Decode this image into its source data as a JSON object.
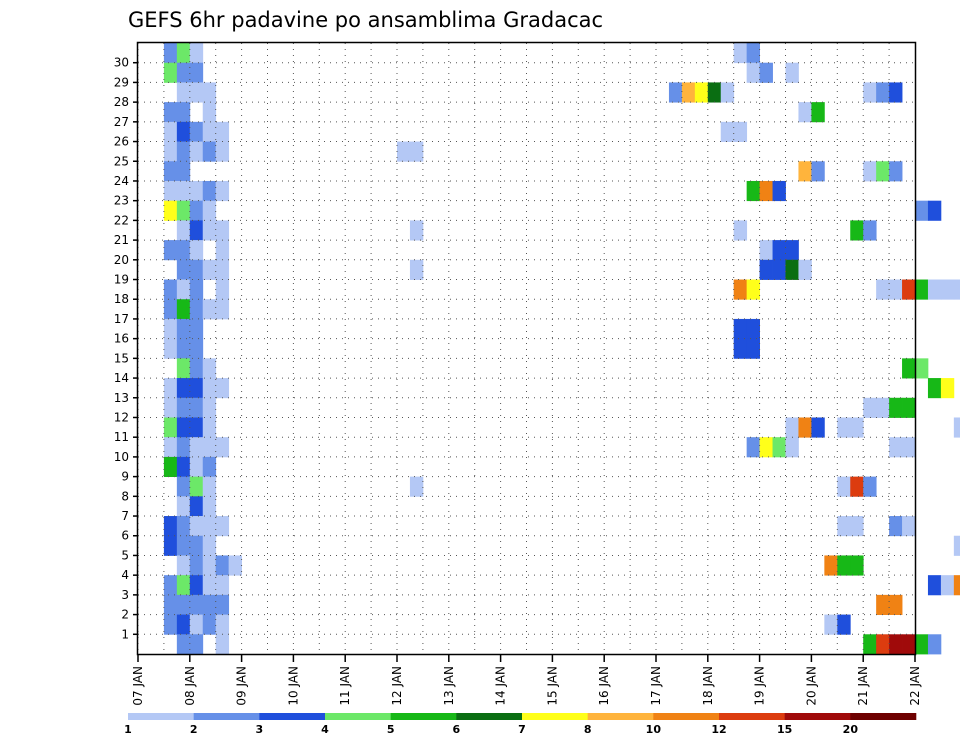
{
  "chart_data": {
    "type": "heatmap",
    "title": "GEFS 6hr padavine po ansamblima Gradacac",
    "xlabel": "",
    "ylabel": "",
    "x_tick_labels": [
      "07 JAN",
      "08 JAN",
      "09 JAN",
      "10 JAN",
      "11 JAN",
      "12 JAN",
      "13 JAN",
      "14 JAN",
      "15 JAN",
      "16 JAN",
      "17 JAN",
      "18 JAN",
      "19 JAN",
      "20 JAN",
      "21 JAN",
      "22 JAN"
    ],
    "y_tick_labels": [
      "1",
      "2",
      "3",
      "4",
      "5",
      "6",
      "7",
      "8",
      "9",
      "10",
      "11",
      "12",
      "13",
      "14",
      "15",
      "16",
      "17",
      "18",
      "19",
      "20",
      "21",
      "22",
      "23",
      "24",
      "25",
      "26",
      "27",
      "28",
      "29",
      "30"
    ],
    "grid": true,
    "legend_placement": "bottom",
    "colorbar": {
      "labels": [
        "1",
        "2",
        "3",
        "4",
        "5",
        "6",
        "7",
        "8",
        "10",
        "12",
        "15",
        "20"
      ],
      "colors": [
        "#b4c8f5",
        "#6690e8",
        "#1f4fdc",
        "#6ce868",
        "#17b817",
        "#0a6e12",
        "#ffff1a",
        "#ffb43c",
        "#f08214",
        "#dc3c0f",
        "#a00a0a",
        "#6e0000"
      ]
    },
    "cells": [
      [
        30,
        2,
        2
      ],
      [
        30,
        3,
        4
      ],
      [
        30,
        4,
        1
      ],
      [
        30,
        46,
        1
      ],
      [
        30,
        47,
        2
      ],
      [
        29,
        2,
        4
      ],
      [
        29,
        3,
        2
      ],
      [
        29,
        4,
        2
      ],
      [
        29,
        47,
        1
      ],
      [
        29,
        48,
        2
      ],
      [
        29,
        50,
        1
      ],
      [
        28,
        3,
        1
      ],
      [
        28,
        4,
        1
      ],
      [
        28,
        5,
        1
      ],
      [
        28,
        41,
        2
      ],
      [
        28,
        42,
        8
      ],
      [
        28,
        43,
        7
      ],
      [
        28,
        44,
        6
      ],
      [
        28,
        45,
        1
      ],
      [
        28,
        56,
        1
      ],
      [
        28,
        57,
        2
      ],
      [
        28,
        58,
        3
      ],
      [
        27,
        2,
        2
      ],
      [
        27,
        3,
        2
      ],
      [
        27,
        5,
        1
      ],
      [
        27,
        51,
        1
      ],
      [
        27,
        52,
        5
      ],
      [
        26,
        2,
        1
      ],
      [
        26,
        3,
        3
      ],
      [
        26,
        4,
        2
      ],
      [
        26,
        5,
        1
      ],
      [
        26,
        6,
        1
      ],
      [
        26,
        45,
        1
      ],
      [
        26,
        46,
        1
      ],
      [
        25,
        2,
        1
      ],
      [
        25,
        3,
        2
      ],
      [
        25,
        4,
        1
      ],
      [
        25,
        5,
        2
      ],
      [
        25,
        6,
        1
      ],
      [
        25,
        20,
        1
      ],
      [
        25,
        21,
        1
      ],
      [
        24,
        2,
        2
      ],
      [
        24,
        3,
        2
      ],
      [
        24,
        51,
        8
      ],
      [
        24,
        52,
        2
      ],
      [
        24,
        56,
        1
      ],
      [
        24,
        57,
        4
      ],
      [
        24,
        58,
        2
      ],
      [
        23,
        2,
        1
      ],
      [
        23,
        3,
        1
      ],
      [
        23,
        4,
        1
      ],
      [
        23,
        5,
        2
      ],
      [
        23,
        6,
        1
      ],
      [
        23,
        47,
        5
      ],
      [
        23,
        48,
        9
      ],
      [
        23,
        49,
        3
      ],
      [
        23,
        68,
        1
      ],
      [
        23,
        70,
        3
      ],
      [
        23,
        71,
        7
      ],
      [
        22,
        2,
        7
      ],
      [
        22,
        3,
        4
      ],
      [
        22,
        4,
        2
      ],
      [
        22,
        5,
        1
      ],
      [
        22,
        60,
        2
      ],
      [
        22,
        61,
        3
      ],
      [
        21,
        3,
        1
      ],
      [
        21,
        4,
        3
      ],
      [
        21,
        5,
        1
      ],
      [
        21,
        6,
        1
      ],
      [
        21,
        21,
        1
      ],
      [
        21,
        46,
        1
      ],
      [
        21,
        55,
        5
      ],
      [
        21,
        56,
        2
      ],
      [
        20,
        2,
        2
      ],
      [
        20,
        3,
        2
      ],
      [
        20,
        4,
        1
      ],
      [
        20,
        6,
        1
      ],
      [
        20,
        48,
        1
      ],
      [
        20,
        49,
        3
      ],
      [
        20,
        50,
        3
      ],
      [
        20,
        71,
        2
      ],
      [
        20,
        72,
        6
      ],
      [
        19,
        3,
        2
      ],
      [
        19,
        4,
        2
      ],
      [
        19,
        5,
        1
      ],
      [
        19,
        6,
        1
      ],
      [
        19,
        21,
        1
      ],
      [
        19,
        48,
        3
      ],
      [
        19,
        49,
        3
      ],
      [
        19,
        50,
        6
      ],
      [
        19,
        51,
        1
      ],
      [
        18,
        2,
        2
      ],
      [
        18,
        3,
        1
      ],
      [
        18,
        4,
        2
      ],
      [
        18,
        6,
        1
      ],
      [
        18,
        46,
        9
      ],
      [
        18,
        47,
        7
      ],
      [
        18,
        57,
        1
      ],
      [
        18,
        58,
        1
      ],
      [
        18,
        59,
        10
      ],
      [
        18,
        60,
        5
      ],
      [
        18,
        61,
        1
      ],
      [
        18,
        62,
        1
      ],
      [
        18,
        63,
        1
      ],
      [
        18,
        64,
        1
      ],
      [
        18,
        69,
        1
      ],
      [
        18,
        70,
        2
      ],
      [
        18,
        71,
        1
      ],
      [
        17,
        2,
        2
      ],
      [
        17,
        3,
        5
      ],
      [
        17,
        4,
        2
      ],
      [
        17,
        5,
        1
      ],
      [
        17,
        6,
        1
      ],
      [
        16,
        2,
        1
      ],
      [
        16,
        3,
        2
      ],
      [
        16,
        4,
        2
      ],
      [
        16,
        46,
        3
      ],
      [
        16,
        47,
        3
      ],
      [
        15,
        2,
        1
      ],
      [
        15,
        3,
        2
      ],
      [
        15,
        4,
        2
      ],
      [
        15,
        46,
        3
      ],
      [
        15,
        47,
        3
      ],
      [
        14,
        3,
        4
      ],
      [
        14,
        4,
        2
      ],
      [
        14,
        5,
        1
      ],
      [
        14,
        59,
        5
      ],
      [
        14,
        60,
        4
      ],
      [
        13,
        2,
        1
      ],
      [
        13,
        3,
        3
      ],
      [
        13,
        4,
        3
      ],
      [
        13,
        5,
        1
      ],
      [
        13,
        6,
        1
      ],
      [
        13,
        61,
        5
      ],
      [
        13,
        62,
        7
      ],
      [
        13,
        70,
        1
      ],
      [
        12,
        2,
        1
      ],
      [
        12,
        3,
        2
      ],
      [
        12,
        4,
        2
      ],
      [
        12,
        5,
        1
      ],
      [
        12,
        56,
        1
      ],
      [
        12,
        57,
        1
      ],
      [
        12,
        58,
        5
      ],
      [
        12,
        59,
        5
      ],
      [
        11,
        2,
        4
      ],
      [
        11,
        3,
        3
      ],
      [
        11,
        4,
        3
      ],
      [
        11,
        5,
        1
      ],
      [
        11,
        50,
        1
      ],
      [
        11,
        51,
        9
      ],
      [
        11,
        52,
        3
      ],
      [
        11,
        54,
        1
      ],
      [
        11,
        55,
        1
      ],
      [
        11,
        63,
        1
      ],
      [
        11,
        64,
        2
      ],
      [
        11,
        65,
        2
      ],
      [
        10,
        2,
        1
      ],
      [
        10,
        3,
        2
      ],
      [
        10,
        4,
        1
      ],
      [
        10,
        5,
        1
      ],
      [
        10,
        6,
        1
      ],
      [
        10,
        47,
        2
      ],
      [
        10,
        48,
        7
      ],
      [
        10,
        49,
        4
      ],
      [
        10,
        50,
        1
      ],
      [
        10,
        58,
        1
      ],
      [
        10,
        59,
        1
      ],
      [
        9,
        2,
        5
      ],
      [
        9,
        3,
        3
      ],
      [
        9,
        4,
        1
      ],
      [
        9,
        5,
        2
      ],
      [
        8,
        3,
        2
      ],
      [
        8,
        4,
        4
      ],
      [
        8,
        5,
        1
      ],
      [
        8,
        21,
        1
      ],
      [
        8,
        54,
        1
      ],
      [
        8,
        55,
        10
      ],
      [
        8,
        56,
        2
      ],
      [
        8,
        70,
        1
      ],
      [
        7,
        3,
        1
      ],
      [
        7,
        4,
        3
      ],
      [
        7,
        5,
        1
      ],
      [
        6,
        2,
        3
      ],
      [
        6,
        3,
        2
      ],
      [
        6,
        4,
        1
      ],
      [
        6,
        5,
        1
      ],
      [
        6,
        6,
        1
      ],
      [
        6,
        54,
        1
      ],
      [
        6,
        55,
        1
      ],
      [
        6,
        58,
        2
      ],
      [
        6,
        59,
        1
      ],
      [
        5,
        2,
        3
      ],
      [
        5,
        3,
        2
      ],
      [
        5,
        4,
        2
      ],
      [
        5,
        5,
        1
      ],
      [
        5,
        63,
        1
      ],
      [
        5,
        64,
        2
      ],
      [
        5,
        65,
        1
      ],
      [
        5,
        66,
        1
      ],
      [
        5,
        67,
        1
      ],
      [
        4,
        3,
        1
      ],
      [
        4,
        4,
        2
      ],
      [
        4,
        5,
        1
      ],
      [
        4,
        6,
        2
      ],
      [
        4,
        7,
        1
      ],
      [
        4,
        53,
        9
      ],
      [
        4,
        54,
        5
      ],
      [
        4,
        55,
        5
      ],
      [
        3,
        2,
        2
      ],
      [
        3,
        3,
        4
      ],
      [
        3,
        4,
        3
      ],
      [
        3,
        5,
        1
      ],
      [
        3,
        6,
        1
      ],
      [
        3,
        61,
        3
      ],
      [
        3,
        62,
        1
      ],
      [
        3,
        63,
        9
      ],
      [
        3,
        64,
        2
      ],
      [
        3,
        65,
        2
      ],
      [
        3,
        66,
        1
      ],
      [
        3,
        67,
        1
      ],
      [
        3,
        68,
        1
      ],
      [
        3,
        69,
        1
      ],
      [
        2,
        2,
        2
      ],
      [
        2,
        3,
        2
      ],
      [
        2,
        4,
        2
      ],
      [
        2,
        5,
        2
      ],
      [
        2,
        6,
        2
      ],
      [
        2,
        57,
        9
      ],
      [
        2,
        58,
        9
      ],
      [
        2,
        70,
        2
      ],
      [
        2,
        72,
        8
      ],
      [
        1,
        2,
        2
      ],
      [
        1,
        3,
        3
      ],
      [
        1,
        4,
        1
      ],
      [
        1,
        5,
        2
      ],
      [
        1,
        6,
        1
      ],
      [
        1,
        53,
        1
      ],
      [
        1,
        54,
        3
      ],
      [
        0,
        3,
        2
      ],
      [
        0,
        4,
        2
      ],
      [
        0,
        6,
        1
      ],
      [
        0,
        56,
        5
      ],
      [
        0,
        57,
        10
      ],
      [
        0,
        58,
        11
      ],
      [
        0,
        59,
        11
      ],
      [
        0,
        60,
        5
      ],
      [
        0,
        61,
        2
      ]
    ]
  }
}
